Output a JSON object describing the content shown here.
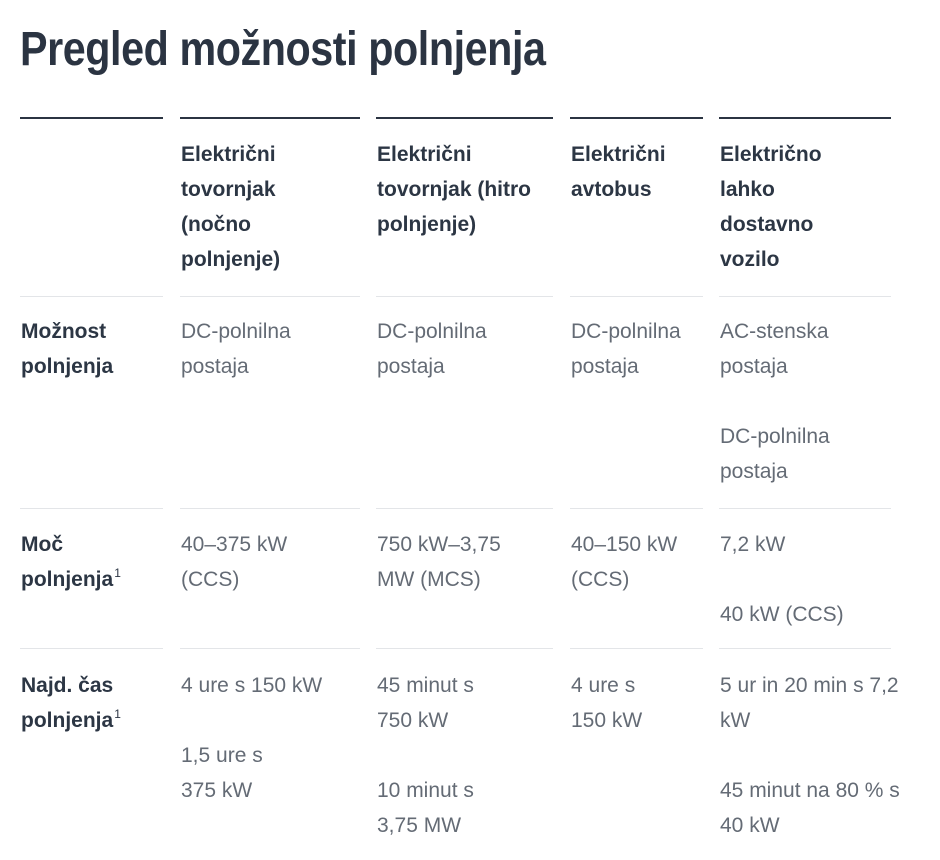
{
  "title": "Pregled možnosti polnjenja",
  "columns": [
    "Električni tovornjak (nočno polnjenje)",
    "Električni tovornjak (hitro polnjenje)",
    "Električni avtobus",
    "Električno lahko dostavno vozilo"
  ],
  "rows": [
    {
      "label": "Možnost polnjenja",
      "footnote": "",
      "cells": [
        [
          "DC-polnilna postaja"
        ],
        [
          "DC-polnilna postaja"
        ],
        [
          "DC-polnilna postaja"
        ],
        [
          "AC-stenska postaja",
          "DC-polnilna postaja"
        ]
      ]
    },
    {
      "label": "Moč polnjenja",
      "footnote": "1",
      "cells": [
        [
          "40–375 kW (CCS)"
        ],
        [
          "750 kW–3,75 MW (MCS)"
        ],
        [
          "40–150 kW (CCS)"
        ],
        [
          "7,2 kW",
          "40 kW (CCS)"
        ]
      ]
    },
    {
      "label": "Najd. čas polnjenja",
      "footnote": "1",
      "cells": [
        [
          "4 ure s 150 kW",
          "1,5 ure s 375 kW"
        ],
        [
          "45 minut s 750 kW",
          "10 minut s 3,75 MW"
        ],
        [
          "4 ure s 150 kW"
        ],
        [
          "5 ur in 20 min s 7,2 kW",
          "45 minut na 80 % s 40 kW"
        ]
      ]
    }
  ]
}
